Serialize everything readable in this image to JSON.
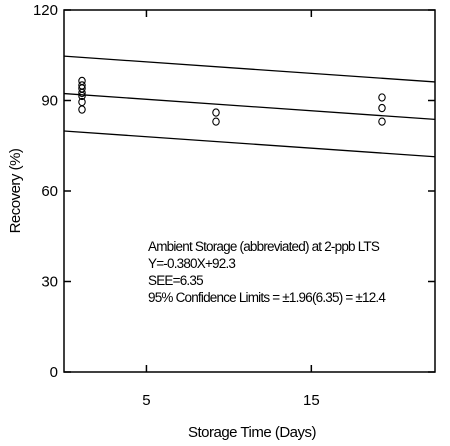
{
  "chart_data": {
    "type": "scatter",
    "title": "",
    "xlabel": "Storage Time (Days)",
    "ylabel": "Recovery (%)",
    "xlim": [
      0,
      22.5
    ],
    "ylim": [
      0,
      120
    ],
    "x_ticks": [
      5,
      15
    ],
    "x_tick_labels": [
      "5",
      "15"
    ],
    "y_ticks": [
      0,
      30,
      60,
      90,
      120
    ],
    "y_tick_labels": [
      "0",
      "30",
      "60",
      "90",
      "120"
    ],
    "grid": false,
    "legend": "none",
    "points": [
      {
        "x": 0,
        "y": 96.5
      },
      {
        "x": 0,
        "y": 95
      },
      {
        "x": 0,
        "y": 94
      },
      {
        "x": 0,
        "y": 92.5
      },
      {
        "x": 0,
        "y": 91.5
      },
      {
        "x": 0,
        "y": 89.5
      },
      {
        "x": 0,
        "y": 87
      },
      {
        "x": 8,
        "y": 86
      },
      {
        "x": 8,
        "y": 83
      },
      {
        "x": 18,
        "y": 91
      },
      {
        "x": 18,
        "y": 87.5
      },
      {
        "x": 18,
        "y": 83
      }
    ],
    "lines": [
      {
        "name": "Upper 95% confidence limit",
        "x": [
          0,
          22.5
        ],
        "y": [
          104.7,
          96.15
        ]
      },
      {
        "name": "Regression line",
        "x": [
          0,
          22.5
        ],
        "y": [
          92.3,
          83.75
        ]
      },
      {
        "name": "Lower 95% confidence limit",
        "x": [
          0,
          22.5
        ],
        "y": [
          79.9,
          71.35
        ]
      }
    ],
    "annotations": [
      "Ambient Storage (abbreviated) at 2-ppb LTS",
      "Y=-0.380X+92.3",
      "SEE=6.35",
      "95% Confidence Limits = ±1.96(6.35) = ±12.4"
    ],
    "colors": {
      "marks": "#000000",
      "background": "#ffffff"
    }
  }
}
